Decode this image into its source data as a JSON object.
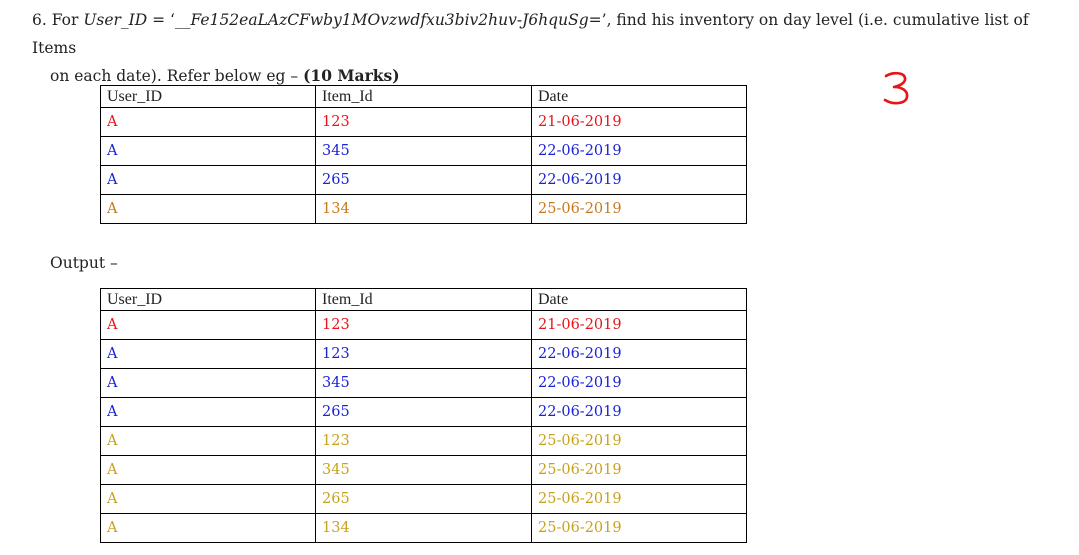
{
  "question": {
    "number": "6.",
    "text_prefix": "For ",
    "var_name": "User_ID",
    "equals": " = ‘",
    "user_id_value": "__Fe152eaLAzCFwby1MOvzwdfxu3biv2huv-J6hquSg=",
    "close_quote": "’",
    "text_line1_rest": ", find his inventory on day level (i.e. cumulative list of Items",
    "text_line2": "on each date). Refer below eg – ",
    "marks": "(10 Marks)"
  },
  "handwritten_mark": "3",
  "input_table": {
    "headers": [
      "User_ID",
      "Item_Id",
      "Date"
    ],
    "rows": [
      {
        "cells": [
          "A",
          "123",
          "21-06-2019"
        ],
        "color": "#e8141a"
      },
      {
        "cells": [
          "A",
          "345",
          "22-06-2019"
        ],
        "color": "#1a23d6"
      },
      {
        "cells": [
          "A",
          "265",
          "22-06-2019"
        ],
        "color": "#1a23d6"
      },
      {
        "cells": [
          "A",
          "134",
          "25-06-2019"
        ],
        "color": "#c8791e"
      }
    ]
  },
  "output_label": "Output –",
  "output_table": {
    "headers": [
      "User_ID",
      "Item_Id",
      "Date"
    ],
    "rows": [
      {
        "cells": [
          "A",
          "123",
          "21-06-2019"
        ],
        "color": "#e8141a"
      },
      {
        "cells": [
          "A",
          "123",
          "22-06-2019"
        ],
        "color": "#1a23d6"
      },
      {
        "cells": [
          "A",
          "345",
          "22-06-2019"
        ],
        "color": "#1a23d6"
      },
      {
        "cells": [
          "A",
          "265",
          "22-06-2019"
        ],
        "color": "#1a23d6"
      },
      {
        "cells": [
          "A",
          "123",
          "25-06-2019"
        ],
        "color": "#c9a21c"
      },
      {
        "cells": [
          "A",
          "345",
          "25-06-2019"
        ],
        "color": "#c9a21c"
      },
      {
        "cells": [
          "A",
          "265",
          "25-06-2019"
        ],
        "color": "#c9a21c"
      },
      {
        "cells": [
          "A",
          "134",
          "25-06-2019"
        ],
        "color": "#c9a21c"
      }
    ]
  }
}
